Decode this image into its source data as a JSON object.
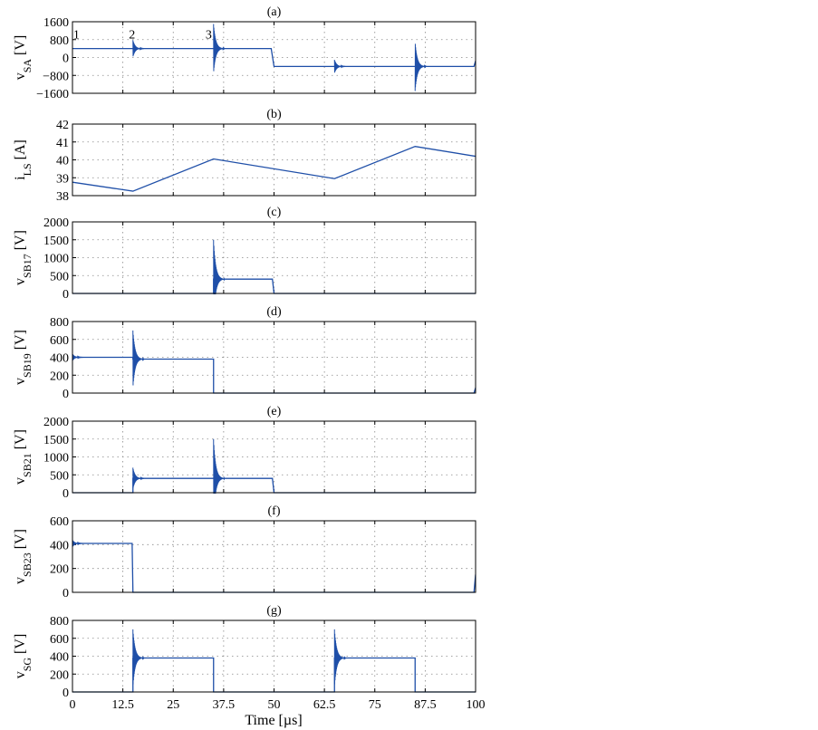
{
  "chart_data": [
    {
      "id": "a",
      "type": "line",
      "title": "(a)",
      "ylabel": {
        "main": "v",
        "sub": "SA",
        "unit": " [V]"
      },
      "ylim": [
        -1600,
        1600
      ],
      "yticks": [
        -1600,
        -800,
        0,
        800,
        1600
      ],
      "xlim": [
        0,
        100
      ],
      "color": "#1f4fa8",
      "points": [
        [
          0,
          400
        ],
        [
          49.3,
          400
        ],
        [
          50,
          -400
        ],
        [
          99.6,
          -400
        ],
        [
          100,
          -150
        ]
      ],
      "rings": [
        {
          "t": 15,
          "base": 400,
          "amp": 380
        },
        {
          "t": 35,
          "base": 400,
          "amp": 1100
        },
        {
          "t": 65,
          "base": -400,
          "amp": 300
        },
        {
          "t": 85,
          "base": -400,
          "amp": 1100,
          "dir": -1
        }
      ],
      "annotations": [
        {
          "text": "1",
          "t": 0.2,
          "v": 850
        },
        {
          "text": "2",
          "t": 14,
          "v": 850
        },
        {
          "text": "3",
          "t": 33,
          "v": 850
        }
      ]
    },
    {
      "id": "b",
      "type": "line",
      "title": "(b)",
      "ylabel": {
        "main": "i",
        "sub": "LS",
        "unit": " [A]"
      },
      "ylim": [
        38,
        42
      ],
      "yticks": [
        38,
        39,
        40,
        41,
        42
      ],
      "xlim": [
        0,
        100
      ],
      "color": "#1f4fa8",
      "points": [
        [
          0,
          38.75
        ],
        [
          15,
          38.25
        ],
        [
          35,
          40.05
        ],
        [
          65,
          38.95
        ],
        [
          85,
          40.75
        ],
        [
          100,
          40.2
        ]
      ],
      "rings": [],
      "annotations": []
    },
    {
      "id": "c",
      "type": "line",
      "title": "(c)",
      "ylabel": {
        "main": "v",
        "sub": "SB17",
        "unit": " [V]"
      },
      "ylim": [
        0,
        2000
      ],
      "yticks": [
        0,
        500,
        1000,
        1500,
        2000
      ],
      "xlim": [
        0,
        100
      ],
      "color": "#1f4fa8",
      "points": [
        [
          0,
          0
        ],
        [
          35,
          0
        ],
        [
          35,
          400
        ],
        [
          49.6,
          400
        ],
        [
          50,
          0
        ],
        [
          100,
          0
        ]
      ],
      "rings": [
        {
          "t": 35,
          "base": 400,
          "amp": 1100
        }
      ],
      "annotations": []
    },
    {
      "id": "d",
      "type": "line",
      "title": "(d)",
      "ylabel": {
        "main": "v",
        "sub": "SB19",
        "unit": " [V]"
      },
      "ylim": [
        0,
        800
      ],
      "yticks": [
        0,
        200,
        400,
        600,
        800
      ],
      "xlim": [
        0,
        100
      ],
      "color": "#1f4fa8",
      "points": [
        [
          0,
          400
        ],
        [
          15,
          400
        ],
        [
          15,
          380
        ],
        [
          35,
          380
        ],
        [
          35,
          0
        ],
        [
          99.6,
          0
        ],
        [
          100,
          60
        ]
      ],
      "rings": [
        {
          "t": 0,
          "base": 400,
          "amp": 40
        },
        {
          "t": 15,
          "base": 380,
          "amp": 320
        }
      ],
      "annotations": []
    },
    {
      "id": "e",
      "type": "line",
      "title": "(e)",
      "ylabel": {
        "main": "v",
        "sub": "SB21",
        "unit": " [V]"
      },
      "ylim": [
        0,
        2000
      ],
      "yticks": [
        0,
        500,
        1000,
        1500,
        2000
      ],
      "xlim": [
        0,
        100
      ],
      "color": "#1f4fa8",
      "points": [
        [
          0,
          0
        ],
        [
          15,
          0
        ],
        [
          15,
          400
        ],
        [
          35,
          400
        ],
        [
          49.6,
          400
        ],
        [
          50,
          0
        ],
        [
          100,
          0
        ]
      ],
      "rings": [
        {
          "t": 15,
          "base": 400,
          "amp": 300
        },
        {
          "t": 35,
          "base": 400,
          "amp": 1100
        }
      ],
      "annotations": []
    },
    {
      "id": "f",
      "type": "line",
      "title": "(f)",
      "ylabel": {
        "main": "v",
        "sub": "SB23",
        "unit": " [V]"
      },
      "ylim": [
        0,
        600
      ],
      "yticks": [
        0,
        200,
        400,
        600
      ],
      "xlim": [
        0,
        100
      ],
      "color": "#1f4fa8",
      "points": [
        [
          0,
          410
        ],
        [
          14.8,
          410
        ],
        [
          15,
          0
        ],
        [
          99.6,
          0
        ],
        [
          100,
          150
        ]
      ],
      "rings": [
        {
          "t": 0,
          "base": 410,
          "amp": 30
        }
      ],
      "annotations": []
    },
    {
      "id": "g",
      "type": "line",
      "title": "(g)",
      "ylabel": {
        "main": "v",
        "sub": "SG",
        "unit": " [V]"
      },
      "ylim": [
        0,
        800
      ],
      "yticks": [
        0,
        200,
        400,
        600,
        800
      ],
      "xlim": [
        0,
        100
      ],
      "color": "#1f4fa8",
      "points": [
        [
          0,
          0
        ],
        [
          15,
          0
        ],
        [
          15,
          380
        ],
        [
          35,
          380
        ],
        [
          35,
          0
        ],
        [
          65,
          0
        ],
        [
          65,
          380
        ],
        [
          85,
          380
        ],
        [
          85,
          0
        ],
        [
          100,
          0
        ]
      ],
      "rings": [
        {
          "t": 15,
          "base": 380,
          "amp": 320
        },
        {
          "t": 65,
          "base": 380,
          "amp": 320
        }
      ],
      "annotations": []
    }
  ],
  "xaxis": {
    "label": "Time [µs]",
    "ticks": [
      0,
      12.5,
      25,
      37.5,
      50,
      62.5,
      75,
      87.5,
      100
    ],
    "tick_labels": [
      "0",
      "12.5",
      "25",
      "37.5",
      "50",
      "62.5",
      "75",
      "87.5",
      "100"
    ]
  }
}
